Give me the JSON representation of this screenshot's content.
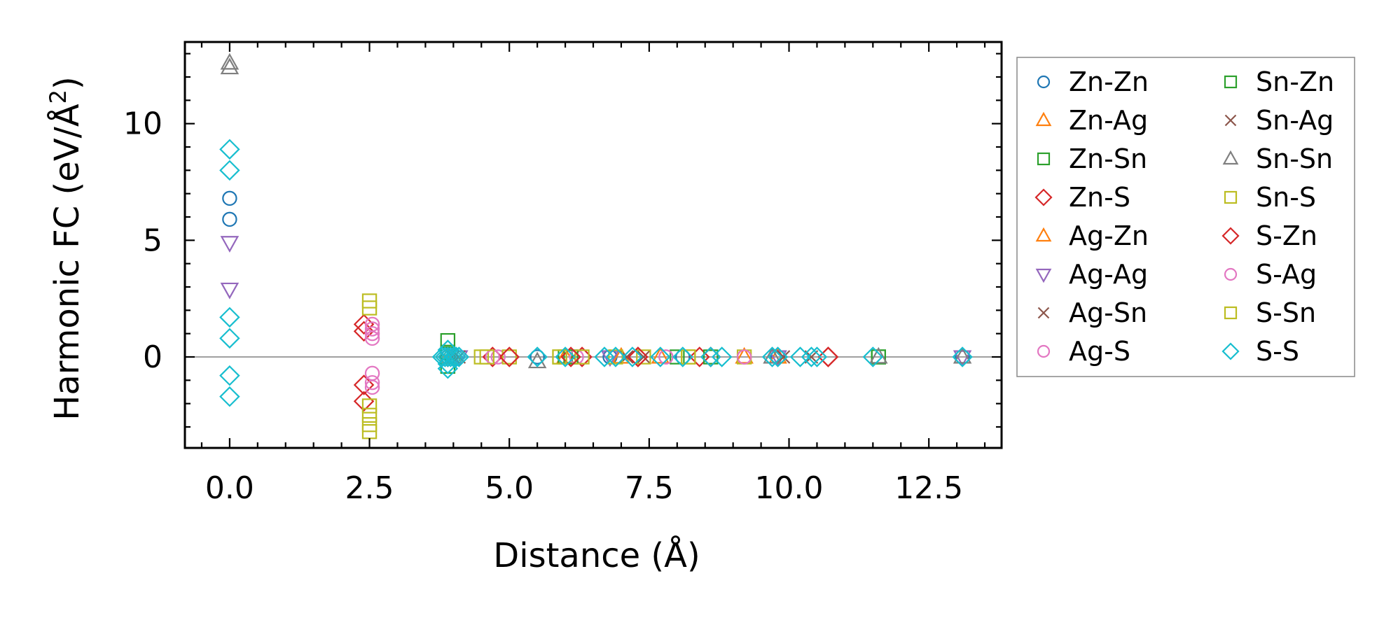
{
  "chart_data": {
    "type": "scatter",
    "title": "",
    "xlabel": "Distance (Å)",
    "ylabel_text": "Harmonic FC (eV/Å",
    "ylabel_sup": "2",
    "ylabel_close": ")",
    "xlim": [
      -0.8,
      13.8
    ],
    "ylim": [
      -3.9,
      13.5
    ],
    "xticks": [
      0.0,
      2.5,
      5.0,
      7.5,
      10.0,
      12.5
    ],
    "xtick_labels": [
      "0.0",
      "2.5",
      "5.0",
      "7.5",
      "10.0",
      "12.5"
    ],
    "yticks": [
      0,
      5,
      10
    ],
    "ytick_labels": [
      "0",
      "5",
      "10"
    ],
    "reference_line_y": 0,
    "legend_position": "outside-right",
    "series": [
      {
        "name": "Zn-Zn",
        "marker": "circle",
        "color": "#1f77b4",
        "x": [
          0,
          0,
          3.9,
          5.5,
          6.8,
          8.1,
          9.8,
          13.1
        ],
        "y": [
          6.8,
          5.9,
          0,
          0,
          0,
          0,
          0,
          0
        ]
      },
      {
        "name": "Zn-Ag",
        "marker": "triangle-up",
        "color": "#ff7f0e",
        "x": [
          3.9,
          6.0,
          7.7,
          9.8
        ],
        "y": [
          0,
          0,
          0,
          0
        ]
      },
      {
        "name": "Zn-Sn",
        "marker": "square",
        "color": "#2ca02c",
        "x": [
          3.9,
          3.9,
          6.0,
          8.0,
          11.6
        ],
        "y": [
          0.7,
          -0.4,
          0,
          0,
          0
        ]
      },
      {
        "name": "Zn-S",
        "marker": "diamond",
        "color": "#d62728",
        "x": [
          2.4,
          2.4,
          2.4,
          2.4,
          4.7,
          6.3,
          7.3,
          8.4,
          10.7
        ],
        "y": [
          1.4,
          1.1,
          -1.2,
          -1.9,
          0,
          0,
          0,
          0,
          0
        ]
      },
      {
        "name": "Ag-Zn",
        "marker": "triangle-up",
        "color": "#ff7f0e",
        "x": [
          4.0,
          7.0,
          9.2
        ],
        "y": [
          0,
          0,
          0
        ]
      },
      {
        "name": "Ag-Ag",
        "marker": "triangle-down",
        "color": "#9467bd",
        "x": [
          0,
          0,
          4.1,
          6.8,
          9.8,
          13.1
        ],
        "y": [
          4.9,
          2.9,
          0,
          0,
          0,
          0
        ]
      },
      {
        "name": "Ag-Sn",
        "marker": "x",
        "color": "#8c564b",
        "x": [
          4.1,
          7.4,
          10.4
        ],
        "y": [
          0,
          0,
          0
        ]
      },
      {
        "name": "Ag-S",
        "marker": "circle",
        "color": "#e377c2",
        "x": [
          2.55,
          2.55,
          2.55,
          2.55,
          2.55,
          2.55,
          4.8,
          6.2,
          7.8,
          9.2
        ],
        "y": [
          1.4,
          1.0,
          0.8,
          -0.7,
          -1.1,
          -1.3,
          0,
          0,
          0,
          0
        ]
      },
      {
        "name": "Sn-Zn",
        "marker": "square",
        "color": "#2ca02c",
        "x": [
          3.9,
          6.1,
          8.6,
          11.6
        ],
        "y": [
          0.2,
          0,
          0,
          0
        ]
      },
      {
        "name": "Sn-Ag",
        "marker": "x",
        "color": "#8c564b",
        "x": [
          4.0,
          7.1,
          9.9
        ],
        "y": [
          0,
          0,
          0
        ]
      },
      {
        "name": "Sn-Sn",
        "marker": "triangle-up",
        "color": "#7f7f7f",
        "x": [
          0,
          0,
          5.5,
          9.7,
          11.6,
          13.1
        ],
        "y": [
          12.6,
          12.4,
          -0.2,
          0,
          0,
          0
        ]
      },
      {
        "name": "Sn-S",
        "marker": "square",
        "color": "#bcbd22",
        "x": [
          2.5,
          2.5,
          2.5,
          2.5,
          2.5,
          2.5,
          4.5,
          5.0,
          5.9,
          6.3,
          7.4,
          8.2,
          9.2
        ],
        "y": [
          2.4,
          2.1,
          -2.1,
          -2.5,
          -2.9,
          -3.2,
          0,
          0,
          0,
          0,
          0,
          0,
          0
        ]
      },
      {
        "name": "S-Zn",
        "marker": "diamond",
        "color": "#d62728",
        "x": [
          3.9,
          5.0,
          6.1,
          7.3,
          8.6,
          10.7
        ],
        "y": [
          0,
          0,
          0,
          0,
          0,
          0
        ]
      },
      {
        "name": "S-Ag",
        "marker": "circle",
        "color": "#e377c2",
        "x": [
          2.55,
          4.7,
          7.8,
          9.2
        ],
        "y": [
          1.2,
          0,
          0,
          0
        ]
      },
      {
        "name": "S-Sn",
        "marker": "square",
        "color": "#bcbd22",
        "x": [
          4.6,
          5.9,
          6.9,
          8.2
        ],
        "y": [
          0,
          0,
          0,
          0
        ]
      },
      {
        "name": "S-S",
        "marker": "diamond",
        "color": "#17becf",
        "x": [
          0,
          0,
          0,
          0,
          0,
          0,
          3.8,
          3.85,
          3.9,
          3.95,
          4.0,
          4.05,
          4.1,
          3.9,
          3.9,
          3.9,
          5.5,
          6.0,
          6.7,
          6.9,
          7.2,
          7.7,
          8.1,
          8.6,
          8.8,
          9.7,
          9.8,
          10.2,
          10.4,
          10.5,
          11.5,
          13.1
        ],
        "y": [
          8.9,
          8.0,
          1.7,
          0.8,
          -0.8,
          -1.7,
          0,
          0,
          0,
          0,
          0,
          0,
          0,
          0.3,
          -0.3,
          -0.5,
          0,
          0,
          0,
          0,
          0,
          0,
          0,
          0,
          0,
          0,
          0,
          0,
          0,
          0,
          0,
          0
        ]
      }
    ]
  }
}
